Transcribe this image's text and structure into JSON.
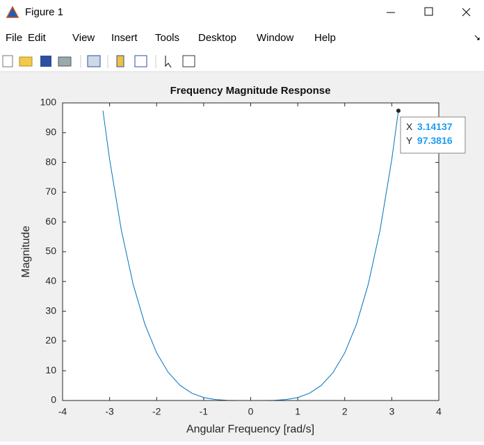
{
  "window": {
    "title": "Figure 1",
    "menu": [
      "File",
      "Edit",
      "View",
      "Insert",
      "Tools",
      "Desktop",
      "Window",
      "Help"
    ]
  },
  "chart_data": {
    "type": "line",
    "title": "Frequency Magnitude Response",
    "x_label": "Angular Frequency [rad/s]",
    "y_label": "Magnitude",
    "x": [
      -3.14137,
      -3,
      -2.75,
      -2.5,
      -2.25,
      -2,
      -1.75,
      -1.5,
      -1.25,
      -1,
      -0.75,
      -0.5,
      -0.25,
      0,
      0.25,
      0.5,
      0.75,
      1,
      1.25,
      1.5,
      1.75,
      2,
      2.25,
      2.5,
      2.75,
      3,
      3.14137
    ],
    "values": [
      97.3816,
      81,
      57.19,
      39.06,
      25.63,
      16,
      9.38,
      5.06,
      2.44,
      1,
      0.32,
      0.06,
      0,
      0,
      0,
      0.06,
      0.32,
      1,
      2.44,
      5.06,
      9.38,
      16,
      25.63,
      39.06,
      57.19,
      81,
      97.3816
    ],
    "color": "#0072bd",
    "xlim": [
      -4,
      4
    ],
    "xticks": [
      -4,
      -3,
      -2,
      -1,
      0,
      1,
      2,
      3,
      4
    ],
    "ylim": [
      0,
      100
    ],
    "yticks": [
      0,
      10,
      20,
      30,
      40,
      50,
      60,
      70,
      80,
      90,
      100
    ],
    "datatip": {
      "x_label": "X",
      "x": 3.14137,
      "y_label": "Y",
      "y": 97.3816
    }
  }
}
